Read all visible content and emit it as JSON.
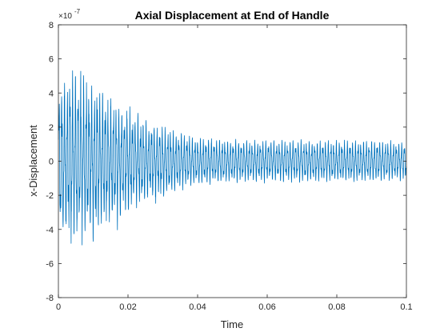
{
  "chart_data": {
    "type": "line",
    "title": "Axial Displacement at End of Handle",
    "xlabel": "Time",
    "ylabel": "x-Displacement",
    "xlim": [
      0,
      0.1
    ],
    "ylim": [
      -8,
      8
    ],
    "y_multiplier": {
      "base": "×10",
      "exponent": "-7"
    },
    "x_ticks": [
      "0",
      "0.02",
      "0.04",
      "0.06",
      "0.08",
      "0.1"
    ],
    "y_ticks": [
      "-8",
      "-6",
      "-4",
      "-2",
      "0",
      "2",
      "4",
      "6",
      "8"
    ],
    "grid": false,
    "legend": "none",
    "series": [
      {
        "color": "#0072BD",
        "description_values": {
          "dominant_frequency_hz": 1280,
          "initial_envelope_peak": 6.1,
          "steady_envelope_peak": 1.2,
          "steady_envelope_trough": -1.0,
          "decay_time_to_steady": 0.04
        },
        "sampled_envelope": {
          "x": [
            0.0,
            0.005,
            0.01,
            0.015,
            0.02,
            0.025,
            0.03,
            0.035,
            0.04,
            0.05,
            0.06,
            0.07,
            0.08,
            0.09,
            0.1
          ],
          "upper": [
            5.5,
            6.0,
            5.3,
            4.2,
            3.5,
            2.8,
            2.2,
            1.8,
            1.5,
            1.35,
            1.3,
            1.3,
            1.3,
            1.3,
            1.2
          ],
          "lower": [
            -5.5,
            -5.6,
            -5.0,
            -4.3,
            -3.5,
            -2.8,
            -2.3,
            -1.8,
            -1.5,
            -1.35,
            -1.3,
            -1.3,
            -1.3,
            -1.3,
            -1.2
          ]
        }
      }
    ]
  }
}
